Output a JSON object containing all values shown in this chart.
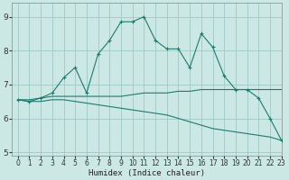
{
  "xlabel": "Humidex (Indice chaleur)",
  "ylabel": "",
  "bg_color": "#cce8e5",
  "grid_color": "#a0c8c4",
  "line_color": "#1e7a6e",
  "xlim": [
    -0.5,
    23
  ],
  "ylim": [
    4.9,
    9.4
  ],
  "yticks": [
    5,
    6,
    7,
    8,
    9
  ],
  "xticks": [
    0,
    1,
    2,
    3,
    4,
    5,
    6,
    7,
    8,
    9,
    10,
    11,
    12,
    13,
    14,
    15,
    16,
    17,
    18,
    19,
    20,
    21,
    22,
    23
  ],
  "series1_x": [
    0,
    1,
    2,
    3,
    4,
    5,
    6,
    7,
    8,
    9,
    10,
    11,
    12,
    13,
    14,
    15,
    16,
    17,
    18,
    19,
    20,
    21,
    22,
    23
  ],
  "series1_y": [
    6.55,
    6.5,
    6.6,
    6.75,
    7.2,
    7.5,
    6.75,
    7.9,
    8.3,
    8.85,
    8.85,
    9.0,
    8.3,
    8.05,
    8.05,
    7.5,
    8.5,
    8.1,
    7.25,
    6.85,
    6.85,
    6.6,
    6.0,
    5.35
  ],
  "series2_x": [
    0,
    1,
    2,
    3,
    4,
    5,
    6,
    7,
    8,
    9,
    10,
    11,
    12,
    13,
    14,
    15,
    16,
    17,
    18,
    19,
    20,
    21,
    22,
    23
  ],
  "series2_y": [
    6.55,
    6.55,
    6.6,
    6.65,
    6.65,
    6.65,
    6.65,
    6.65,
    6.65,
    6.65,
    6.7,
    6.75,
    6.75,
    6.75,
    6.8,
    6.8,
    6.85,
    6.85,
    6.85,
    6.85,
    6.85,
    6.85,
    6.85,
    6.85
  ],
  "series3_x": [
    0,
    1,
    2,
    3,
    4,
    5,
    6,
    7,
    8,
    9,
    10,
    11,
    12,
    13,
    14,
    15,
    16,
    17,
    18,
    19,
    20,
    21,
    22,
    23
  ],
  "series3_y": [
    6.55,
    6.5,
    6.5,
    6.55,
    6.55,
    6.5,
    6.45,
    6.4,
    6.35,
    6.3,
    6.25,
    6.2,
    6.15,
    6.1,
    6.0,
    5.9,
    5.8,
    5.7,
    5.65,
    5.6,
    5.55,
    5.5,
    5.45,
    5.35
  ]
}
